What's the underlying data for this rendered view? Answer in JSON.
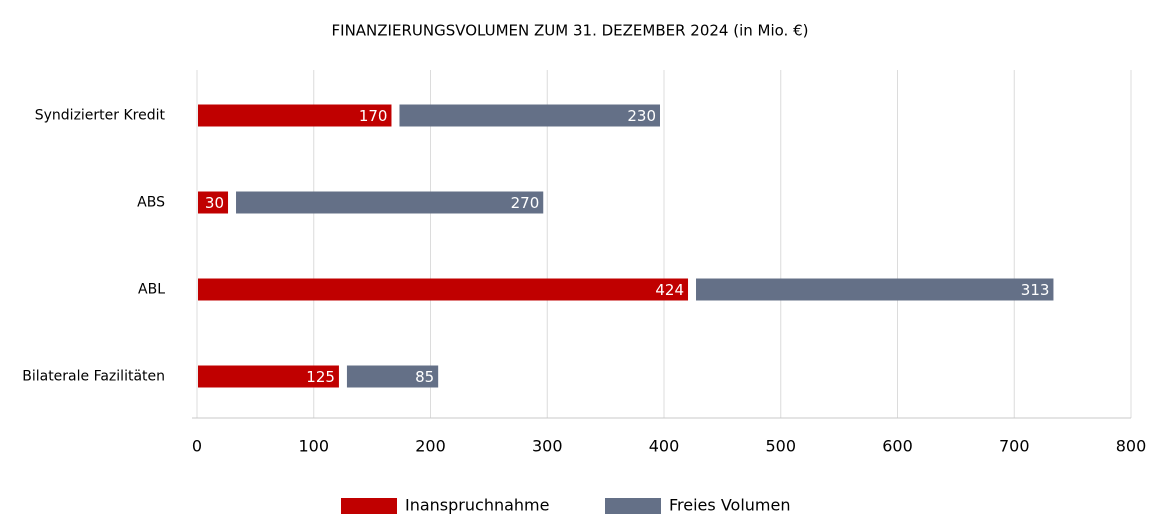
{
  "chart_data": {
    "type": "stacked_bar_horizontal",
    "title": "FINANZIERUNGSVOLUMEN ZUM 31. DEZEMBER 2024 (in Mio. €)",
    "categories": [
      "Syndizierter Kredit",
      "ABS",
      "ABL",
      "Bilaterale Fazilitäten"
    ],
    "series": [
      {
        "name": "Inanspruchnahme",
        "color": "#c00000",
        "values": [
          170,
          30,
          424,
          125
        ]
      },
      {
        "name": "Freies Volumen",
        "color": "#647087",
        "values": [
          230,
          270,
          313,
          85
        ]
      }
    ],
    "xlim": [
      0,
      800
    ],
    "xticks": [
      0,
      100,
      200,
      300,
      400,
      500,
      600,
      700,
      800
    ],
    "grid": true,
    "legend": "bottom"
  }
}
